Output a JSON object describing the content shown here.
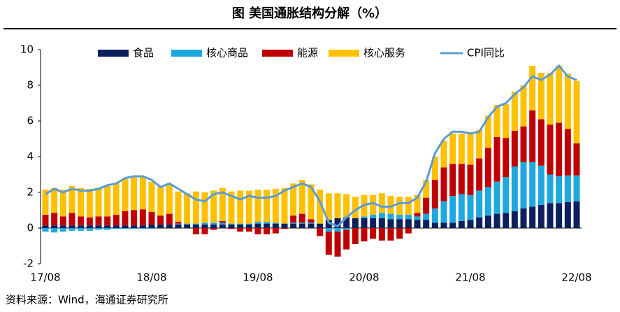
{
  "chart_data": {
    "type": "bar",
    "stacked": true,
    "title": "图  美国通胀结构分解（%）",
    "source": "资料来源：Wind，海通证券研究所",
    "categories": [
      "17/08",
      null,
      null,
      null,
      null,
      null,
      null,
      null,
      null,
      null,
      null,
      null,
      "18/08",
      null,
      null,
      null,
      null,
      null,
      null,
      null,
      null,
      null,
      null,
      null,
      "19/08",
      null,
      null,
      null,
      null,
      null,
      null,
      null,
      null,
      null,
      null,
      null,
      "20/08",
      null,
      null,
      null,
      null,
      null,
      null,
      null,
      null,
      null,
      null,
      null,
      "21/08",
      null,
      null,
      null,
      null,
      null,
      null,
      null,
      null,
      null,
      null,
      null,
      "22/08"
    ],
    "ylim": [
      -2,
      10
    ],
    "yticks": [
      -2,
      0,
      2,
      4,
      6,
      8,
      10
    ],
    "series": [
      {
        "name": "食品",
        "color": "#0d1f5c",
        "values": [
          0.15,
          0.15,
          0.15,
          0.15,
          0.15,
          0.15,
          0.15,
          0.15,
          0.15,
          0.15,
          0.15,
          0.15,
          0.2,
          0.2,
          0.2,
          0.2,
          0.2,
          0.2,
          0.2,
          0.2,
          0.2,
          0.2,
          0.2,
          0.2,
          0.25,
          0.25,
          0.25,
          0.25,
          0.25,
          0.25,
          0.25,
          0.25,
          0.45,
          0.55,
          0.6,
          0.55,
          0.55,
          0.55,
          0.55,
          0.5,
          0.5,
          0.5,
          0.45,
          0.45,
          0.3,
          0.3,
          0.3,
          0.4,
          0.45,
          0.6,
          0.7,
          0.8,
          0.85,
          0.95,
          1.1,
          1.2,
          1.3,
          1.4,
          1.4,
          1.45,
          1.5
        ]
      },
      {
        "name": "核心商品",
        "color": "#1fa8e0",
        "values": [
          -0.2,
          -0.25,
          -0.2,
          -0.15,
          -0.15,
          -0.15,
          -0.1,
          -0.1,
          -0.05,
          -0.05,
          -0.05,
          -0.05,
          -0.05,
          0,
          0,
          0.05,
          0.05,
          0.05,
          0.1,
          0.1,
          0.1,
          0.05,
          0.05,
          0.05,
          0.1,
          0.1,
          0.05,
          0,
          0.05,
          0.05,
          0.05,
          0,
          -0.2,
          -0.2,
          -0.1,
          0,
          0.1,
          0.2,
          0.3,
          0.3,
          0.25,
          0.25,
          0.2,
          0.35,
          0.8,
          1.2,
          1.5,
          1.5,
          1.4,
          1.5,
          1.6,
          1.8,
          2.0,
          2.5,
          2.6,
          2.5,
          2.2,
          1.6,
          1.5,
          1.5,
          1.45
        ]
      },
      {
        "name": "能源",
        "color": "#c00000",
        "values": [
          0.6,
          0.7,
          0.5,
          0.7,
          0.5,
          0.45,
          0.5,
          0.5,
          0.6,
          0.8,
          0.85,
          0.9,
          0.7,
          0.5,
          0.6,
          0.1,
          0,
          -0.35,
          -0.35,
          -0.1,
          0.1,
          -0.05,
          -0.2,
          -0.2,
          -0.35,
          -0.35,
          -0.3,
          -0.05,
          0.4,
          0.5,
          0.2,
          -0.45,
          -1.3,
          -1.4,
          -1.1,
          -0.9,
          -0.75,
          -0.6,
          -0.7,
          -0.7,
          -0.6,
          -0.3,
          0.2,
          0.9,
          1.6,
          1.9,
          1.8,
          1.7,
          1.7,
          1.8,
          2.2,
          2.5,
          2.2,
          2.0,
          2.0,
          2.9,
          2.6,
          2.8,
          3.0,
          2.6,
          1.8
        ]
      },
      {
        "name": "核心服务",
        "color": "#ffc000",
        "values": [
          1.4,
          1.4,
          1.5,
          1.5,
          1.6,
          1.6,
          1.6,
          1.7,
          1.75,
          1.8,
          1.85,
          1.8,
          1.7,
          1.6,
          1.65,
          1.7,
          1.7,
          1.8,
          1.7,
          1.8,
          1.85,
          1.8,
          1.85,
          1.85,
          1.8,
          1.8,
          1.9,
          2.0,
          1.8,
          1.9,
          1.95,
          1.9,
          1.5,
          1.4,
          1.3,
          1.2,
          1.2,
          1.1,
          1.1,
          1.0,
          1.0,
          1.0,
          1.0,
          1.0,
          1.3,
          1.5,
          1.7,
          1.7,
          1.8,
          1.6,
          1.8,
          1.8,
          1.9,
          2.2,
          2.3,
          2.5,
          2.6,
          2.9,
          3.2,
          3.1,
          3.5
        ]
      },
      {
        "name": "CPI同比",
        "color": "#5b9bd5",
        "kind": "line",
        "values": [
          1.9,
          2.2,
          2.0,
          2.2,
          2.1,
          2.1,
          2.2,
          2.4,
          2.5,
          2.8,
          2.9,
          2.9,
          2.7,
          2.3,
          2.5,
          2.2,
          1.9,
          1.6,
          1.5,
          1.9,
          2.0,
          1.8,
          1.6,
          1.8,
          1.7,
          1.7,
          1.8,
          2.1,
          2.3,
          2.5,
          2.3,
          1.5,
          0.3,
          0.1,
          0.6,
          1.0,
          1.3,
          1.4,
          1.2,
          1.2,
          1.4,
          1.4,
          1.7,
          2.6,
          4.2,
          5.0,
          5.4,
          5.4,
          5.3,
          5.4,
          6.2,
          6.8,
          7.0,
          7.5,
          7.9,
          8.5,
          8.3,
          8.6,
          9.1,
          8.5,
          8.3
        ]
      }
    ]
  }
}
